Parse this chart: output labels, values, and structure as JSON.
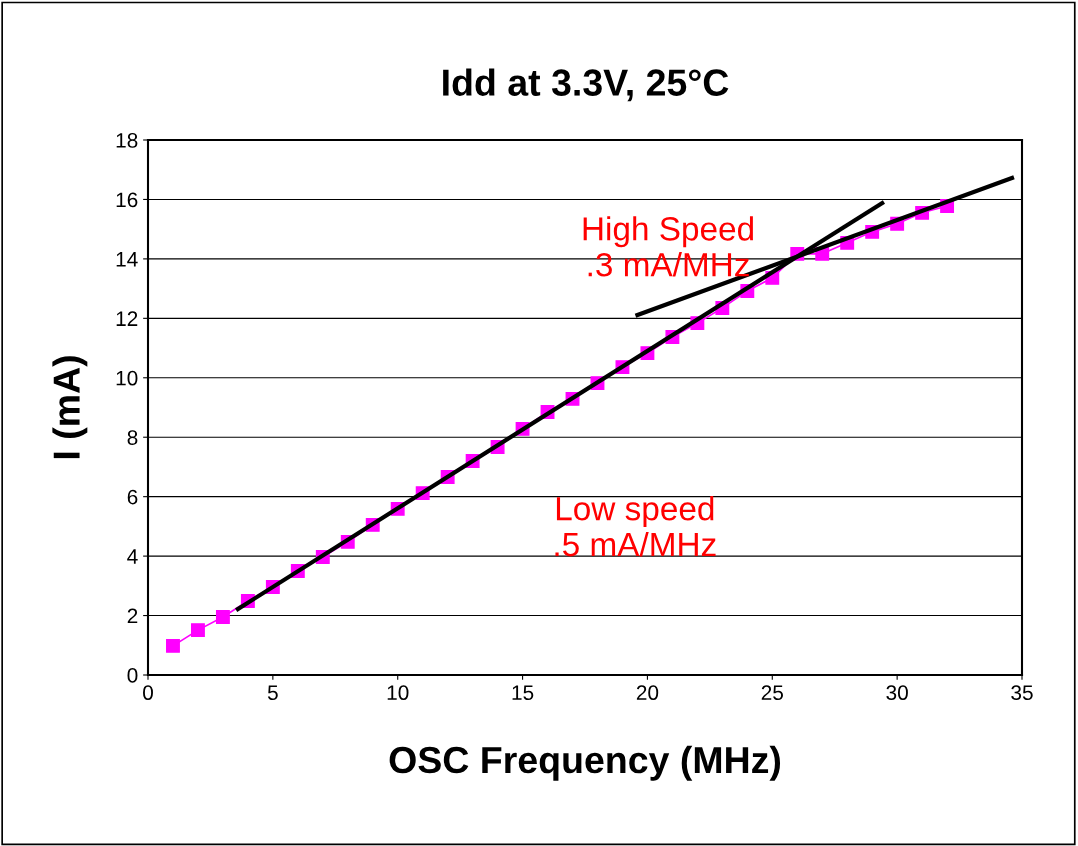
{
  "chart_data": {
    "type": "line",
    "title": "Idd at 3.3V, 25°C",
    "xlabel": "OSC Frequency (MHz)",
    "ylabel": "I (mA)",
    "x": [
      1,
      2,
      3,
      4,
      5,
      6,
      7,
      8,
      9,
      10,
      11,
      12,
      13,
      14,
      15,
      16,
      17,
      18,
      19,
      20,
      21,
      22,
      23,
      24,
      25,
      26,
      27,
      28,
      29,
      30,
      31,
      32
    ],
    "series": [
      {
        "color": "#ff00ff",
        "marker": "square",
        "values": [
          0.98,
          1.51,
          1.95,
          2.49,
          2.96,
          3.5,
          3.97,
          4.48,
          5.05,
          5.59,
          6.12,
          6.66,
          7.2,
          7.67,
          8.28,
          8.85,
          9.29,
          9.82,
          10.36,
          10.83,
          11.37,
          11.84,
          12.35,
          12.92,
          13.36,
          14.17,
          14.17,
          14.54,
          14.91,
          15.18,
          15.55,
          15.78
        ]
      },
      {
        "type": "line",
        "color": "#000000",
        "marker": "none",
        "x": [
          3.6,
          29.4
        ],
        "values": [
          2.22,
          15.88
        ]
      },
      {
        "type": "line",
        "color": "#000000",
        "marker": "none",
        "x": [
          19.6,
          34.6
        ],
        "values": [
          12.11,
          16.72
        ]
      }
    ],
    "annotations": [
      "High Speed\n.3 mA/MHz",
      "Low speed\n.5 mA/MHz"
    ],
    "xlim": [
      0,
      35
    ],
    "xticks": [
      0,
      5,
      10,
      15,
      20,
      25,
      30,
      35
    ],
    "ylim": [
      0,
      18
    ],
    "yticks": [
      0,
      2,
      4,
      6,
      8,
      10,
      12,
      14,
      16,
      18
    ],
    "grid": "y"
  }
}
